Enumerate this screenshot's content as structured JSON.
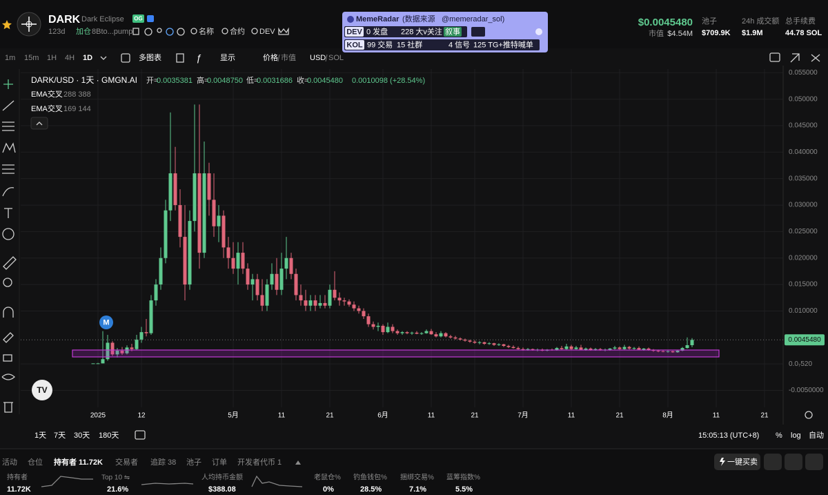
{
  "header": {
    "symbol": "DARK",
    "name": "Dark Eclipse",
    "badge": "OG",
    "age": "123d",
    "hold": "加仓",
    "address": "8Bto...pump",
    "links": [
      "名称",
      "合约",
      "DEV"
    ]
  },
  "price_panel": {
    "price": "$0.0045480",
    "mcap_label": "市值",
    "mcap": "$4.54M",
    "pool_label": "池子",
    "pool": "$709.9K",
    "vol_label": "24h 成交额",
    "vol": "$1.9M",
    "fee_label": "总手续费",
    "fee": "44.78 SOL"
  },
  "memeradar": {
    "title": "MemeRadar",
    "source": "(数据来源",
    "handle": "@memeradar_sol)",
    "dev_tag": "DEV",
    "dev_launch": "0 发盘",
    "followers": "228 大v关注",
    "story": "叙事",
    "kol_tag": "KOL",
    "kol_trades": "99 交易",
    "communities": "15 社群",
    "signals": "4 信号",
    "tg": "125 TG+推特喊单"
  },
  "toolbar": {
    "intervals": [
      "1m",
      "15m",
      "1H",
      "4H",
      "1D"
    ],
    "multi": "多图表",
    "display": "显示",
    "price": "价格",
    "mcap": "市值",
    "usd": "USD",
    "sol": "SOL"
  },
  "chart_data": {
    "type": "candlestick",
    "title": "DARK/USD · 1天 · GMGN.AI",
    "ohlc_legend": [
      {
        "label": "开=",
        "value": "0.0035381"
      },
      {
        "label": "高=",
        "value": "0.0048750"
      },
      {
        "label": "低=",
        "value": "0.0031686"
      },
      {
        "label": "收=",
        "value": "0.0045480"
      }
    ],
    "change": "0.0010098 (+28.54%)",
    "indicators": [
      {
        "name": "EMA交叉",
        "values": "288 388"
      },
      {
        "name": "EMA交叉",
        "values": "169 144"
      }
    ],
    "marker": "M",
    "categories": [
      null,
      "2025",
      null,
      null,
      null,
      null,
      null,
      null,
      null,
      null,
      "12",
      null,
      null,
      null,
      null,
      null,
      null,
      null,
      null,
      null,
      null,
      null,
      null,
      null,
      null,
      null,
      null,
      null,
      null,
      "5月",
      null,
      null,
      null,
      null,
      null,
      null,
      null,
      null,
      null,
      "11",
      null,
      null,
      null,
      null,
      null,
      null,
      null,
      null,
      null,
      "21",
      null,
      null,
      null,
      null,
      null,
      null,
      null,
      null,
      null,
      null,
      "6月",
      null,
      null,
      null,
      null,
      null,
      null,
      null,
      null,
      null,
      "11",
      null,
      null,
      null,
      null,
      null,
      null,
      null,
      null,
      "21",
      null,
      null,
      null,
      null,
      null,
      null,
      null,
      null,
      null,
      "7月",
      null,
      null,
      null,
      null,
      null,
      null,
      null,
      null,
      null,
      "11",
      null,
      null,
      null,
      null,
      null,
      null,
      null,
      null,
      null,
      "21",
      null,
      null,
      null,
      null,
      null,
      null,
      null,
      null,
      null,
      "8月",
      null,
      null,
      null,
      null,
      null,
      null,
      null,
      null,
      null,
      "11",
      null,
      null,
      null,
      null,
      null,
      null,
      null,
      null,
      null,
      "21"
    ],
    "ohlc": [
      [
        0.0001,
        0.0001,
        0.0001,
        0.0001
      ],
      [
        0.0001,
        0.0002,
        0.0001,
        0.0001
      ],
      [
        0.0001,
        0.0062,
        0.0001,
        0.0009
      ],
      [
        0.0009,
        0.0055,
        0.0006,
        0.004
      ],
      [
        0.004,
        0.0043,
        0.0015,
        0.0018
      ],
      [
        0.0018,
        0.003,
        0.0012,
        0.0025
      ],
      [
        0.0025,
        0.0032,
        0.0017,
        0.002
      ],
      [
        0.002,
        0.0035,
        0.0018,
        0.0031
      ],
      [
        0.0031,
        0.0038,
        0.0024,
        0.0028
      ],
      [
        0.0028,
        0.0055,
        0.0026,
        0.0046
      ],
      [
        0.0046,
        0.007,
        0.004,
        0.006
      ],
      [
        0.006,
        0.0085,
        0.0052,
        0.0058
      ],
      [
        0.0058,
        0.013,
        0.0055,
        0.012
      ],
      [
        0.012,
        0.016,
        0.011,
        0.015
      ],
      [
        0.015,
        0.022,
        0.014,
        0.02
      ],
      [
        0.02,
        0.031,
        0.019,
        0.029
      ],
      [
        0.029,
        0.0475,
        0.027,
        0.036
      ],
      [
        0.036,
        0.041,
        0.029,
        0.03
      ],
      [
        0.03,
        0.033,
        0.022,
        0.024
      ],
      [
        0.024,
        0.03,
        0.012,
        0.015
      ],
      [
        0.015,
        0.029,
        0.014,
        0.027
      ],
      [
        0.027,
        0.049,
        0.025,
        0.036
      ],
      [
        0.036,
        0.049,
        0.018,
        0.021
      ],
      [
        0.021,
        0.042,
        0.02,
        0.036
      ],
      [
        0.036,
        0.038,
        0.028,
        0.031
      ],
      [
        0.031,
        0.036,
        0.024,
        0.026
      ],
      [
        0.026,
        0.03,
        0.023,
        0.028
      ],
      [
        0.028,
        0.029,
        0.02,
        0.022
      ],
      [
        0.022,
        0.024,
        0.018,
        0.02
      ],
      [
        0.02,
        0.023,
        0.017,
        0.018
      ],
      [
        0.018,
        0.023,
        0.015,
        0.021
      ],
      [
        0.021,
        0.023,
        0.017,
        0.018
      ],
      [
        0.018,
        0.019,
        0.014,
        0.015
      ],
      [
        0.015,
        0.017,
        0.012,
        0.016
      ],
      [
        0.016,
        0.017,
        0.012,
        0.013
      ],
      [
        0.013,
        0.016,
        0.01,
        0.011
      ],
      [
        0.011,
        0.016,
        0.01,
        0.015
      ],
      [
        0.015,
        0.019,
        0.014,
        0.017
      ],
      [
        0.017,
        0.02,
        0.013,
        0.014
      ],
      [
        0.014,
        0.021,
        0.013,
        0.018
      ],
      [
        0.018,
        0.024,
        0.016,
        0.02
      ],
      [
        0.02,
        0.021,
        0.016,
        0.017
      ],
      [
        0.017,
        0.018,
        0.012,
        0.013
      ],
      [
        0.013,
        0.015,
        0.011,
        0.012
      ],
      [
        0.012,
        0.014,
        0.01,
        0.011
      ],
      [
        0.011,
        0.013,
        0.01,
        0.012
      ],
      [
        0.012,
        0.013,
        0.01,
        0.011
      ],
      [
        0.011,
        0.013,
        0.0105,
        0.0115
      ],
      [
        0.0115,
        0.013,
        0.0105,
        0.011
      ],
      [
        0.011,
        0.015,
        0.0105,
        0.014
      ],
      [
        0.014,
        0.0175,
        0.012,
        0.0125
      ],
      [
        0.0125,
        0.0135,
        0.011,
        0.012
      ],
      [
        0.012,
        0.0125,
        0.011,
        0.0118
      ],
      [
        0.0118,
        0.0122,
        0.0108,
        0.0112
      ],
      [
        0.0112,
        0.0118,
        0.01,
        0.0105
      ],
      [
        0.0105,
        0.011,
        0.0095,
        0.01
      ],
      [
        0.01,
        0.0105,
        0.0085,
        0.009
      ],
      [
        0.009,
        0.0095,
        0.007,
        0.0075
      ],
      [
        0.0075,
        0.008,
        0.0065,
        0.007
      ],
      [
        0.007,
        0.0078,
        0.0062,
        0.0072
      ],
      [
        0.0072,
        0.0075,
        0.0055,
        0.006
      ],
      [
        0.006,
        0.0078,
        0.0058,
        0.007
      ],
      [
        0.007,
        0.0075,
        0.0058,
        0.0062
      ],
      [
        0.0062,
        0.0065,
        0.0055,
        0.0058
      ],
      [
        0.0058,
        0.0062,
        0.0055,
        0.006
      ],
      [
        0.006,
        0.0062,
        0.0056,
        0.0058
      ],
      [
        0.0058,
        0.0061,
        0.0055,
        0.0059
      ],
      [
        0.0059,
        0.0062,
        0.0056,
        0.0057
      ],
      [
        0.0057,
        0.006,
        0.0055,
        0.0058
      ],
      [
        0.0058,
        0.0065,
        0.0057,
        0.0062
      ],
      [
        0.0062,
        0.0066,
        0.0055,
        0.0056
      ],
      [
        0.0056,
        0.006,
        0.005,
        0.0052
      ],
      [
        0.0052,
        0.0062,
        0.005,
        0.0058
      ],
      [
        0.0058,
        0.006,
        0.005,
        0.0052
      ],
      [
        0.0052,
        0.0055,
        0.0048,
        0.005
      ],
      [
        0.005,
        0.0053,
        0.0046,
        0.0048
      ],
      [
        0.0048,
        0.005,
        0.0044,
        0.0046
      ],
      [
        0.0046,
        0.0048,
        0.0042,
        0.0044
      ],
      [
        0.0044,
        0.0046,
        0.004,
        0.0042
      ],
      [
        0.0042,
        0.0045,
        0.0038,
        0.004
      ],
      [
        0.004,
        0.0043,
        0.0037,
        0.0041
      ],
      [
        0.0041,
        0.0042,
        0.0036,
        0.0038
      ],
      [
        0.0038,
        0.0041,
        0.0036,
        0.0039
      ],
      [
        0.0039,
        0.004,
        0.0034,
        0.0036
      ],
      [
        0.0036,
        0.0039,
        0.0034,
        0.0037
      ],
      [
        0.0037,
        0.0038,
        0.0032,
        0.0034
      ],
      [
        0.0034,
        0.0036,
        0.003,
        0.0032
      ],
      [
        0.0032,
        0.0035,
        0.0029,
        0.003
      ],
      [
        0.003,
        0.0033,
        0.0027,
        0.0028
      ],
      [
        0.0028,
        0.0031,
        0.0025,
        0.0027
      ],
      [
        0.0027,
        0.003,
        0.0025,
        0.0028
      ],
      [
        0.0028,
        0.0029,
        0.0025,
        0.0026
      ],
      [
        0.0026,
        0.0029,
        0.0024,
        0.0027
      ],
      [
        0.0027,
        0.0029,
        0.0024,
        0.0025
      ],
      [
        0.0025,
        0.0028,
        0.0024,
        0.0027
      ],
      [
        0.0027,
        0.0029,
        0.0025,
        0.0026
      ],
      [
        0.0026,
        0.0032,
        0.0025,
        0.003
      ],
      [
        0.003,
        0.0034,
        0.0027,
        0.0028
      ],
      [
        0.0028,
        0.0038,
        0.0027,
        0.0033
      ],
      [
        0.0033,
        0.0036,
        0.0026,
        0.0028
      ],
      [
        0.0028,
        0.0034,
        0.0027,
        0.0031
      ],
      [
        0.0031,
        0.0036,
        0.0026,
        0.0027
      ],
      [
        0.0027,
        0.0031,
        0.0025,
        0.0029
      ],
      [
        0.0029,
        0.0031,
        0.0025,
        0.0026
      ],
      [
        0.0026,
        0.003,
        0.0025,
        0.0028
      ],
      [
        0.0028,
        0.003,
        0.0025,
        0.0026
      ],
      [
        0.0026,
        0.0029,
        0.0024,
        0.0027
      ],
      [
        0.0027,
        0.003,
        0.0025,
        0.0029
      ],
      [
        0.0029,
        0.0034,
        0.0027,
        0.0031
      ],
      [
        0.0031,
        0.0033,
        0.0027,
        0.0028
      ],
      [
        0.0028,
        0.0036,
        0.0027,
        0.0032
      ],
      [
        0.0032,
        0.0034,
        0.0027,
        0.0029
      ],
      [
        0.0029,
        0.0032,
        0.0026,
        0.003
      ],
      [
        0.003,
        0.0033,
        0.0026,
        0.0027
      ],
      [
        0.0027,
        0.003,
        0.0025,
        0.0029
      ],
      [
        0.0029,
        0.0031,
        0.0025,
        0.0026
      ],
      [
        0.0026,
        0.0028,
        0.0023,
        0.0025
      ],
      [
        0.0025,
        0.0027,
        0.0022,
        0.0024
      ],
      [
        0.0024,
        0.0026,
        0.0022,
        0.0023
      ],
      [
        0.0023,
        0.0026,
        0.0021,
        0.0024
      ],
      [
        0.0024,
        0.0025,
        0.0021,
        0.0022
      ],
      [
        0.0022,
        0.0026,
        0.0021,
        0.0025
      ],
      [
        0.0025,
        0.0032,
        0.0024,
        0.003
      ],
      [
        0.003,
        0.005,
        0.0029,
        0.0035381
      ],
      [
        0.0035381,
        0.004875,
        0.0031686,
        0.004548
      ],
      null,
      null,
      null,
      null,
      null,
      null,
      null,
      null,
      null,
      null,
      null,
      null,
      null,
      null,
      null
    ],
    "up_color": "#5fc98f",
    "down_color": "#e0677a",
    "ylim": [
      -0.0082,
      0.0557
    ],
    "yticks": [
      {
        "value": -0.005,
        "label": "-0.0050000"
      },
      {
        "value": 5.2e-08,
        "label": "0.0₇520"
      },
      {
        "value": 0.01,
        "label": "0.010000"
      },
      {
        "value": 0.015,
        "label": "0.015000"
      },
      {
        "value": 0.02,
        "label": "0.020000"
      },
      {
        "value": 0.025,
        "label": "0.025000"
      },
      {
        "value": 0.03,
        "label": "0.030000"
      },
      {
        "value": 0.035,
        "label": "0.035000"
      },
      {
        "value": 0.04,
        "label": "0.040000"
      },
      {
        "value": 0.045,
        "label": "0.045000"
      },
      {
        "value": 0.05,
        "label": "0.050000"
      },
      {
        "value": 0.055,
        "label": "0.055000"
      }
    ],
    "last_price": {
      "value": 0.004548,
      "label": "0.0045480"
    },
    "grid": true
  },
  "chart_footer": {
    "ranges": [
      "1天",
      "7天",
      "30天",
      "180天"
    ],
    "time": "15:05:13 (UTC+8)",
    "percent": "%",
    "log": "log",
    "auto": "自动"
  },
  "bottom_tabs": [
    "活动",
    "仓位",
    "持有者 11.72K",
    "交易者",
    "追踪 38",
    "池子",
    "订单",
    "开发者代币 1"
  ],
  "actions": {
    "buy": "一键买卖"
  },
  "stats": [
    {
      "label": "持有者",
      "value": "11.72K"
    },
    {
      "label": "Top 10 ⇋",
      "value": "21.6%"
    },
    {
      "label": "人均持币金额",
      "value": "$388.08"
    },
    {
      "label": "老鼠仓%",
      "value": "0%"
    },
    {
      "label": "钓鱼钱包%",
      "value": "28.5%"
    },
    {
      "label": "捆绑交易%",
      "value": "7.1%"
    },
    {
      "label": "蓝筹指数%",
      "value": "5.5%"
    }
  ]
}
